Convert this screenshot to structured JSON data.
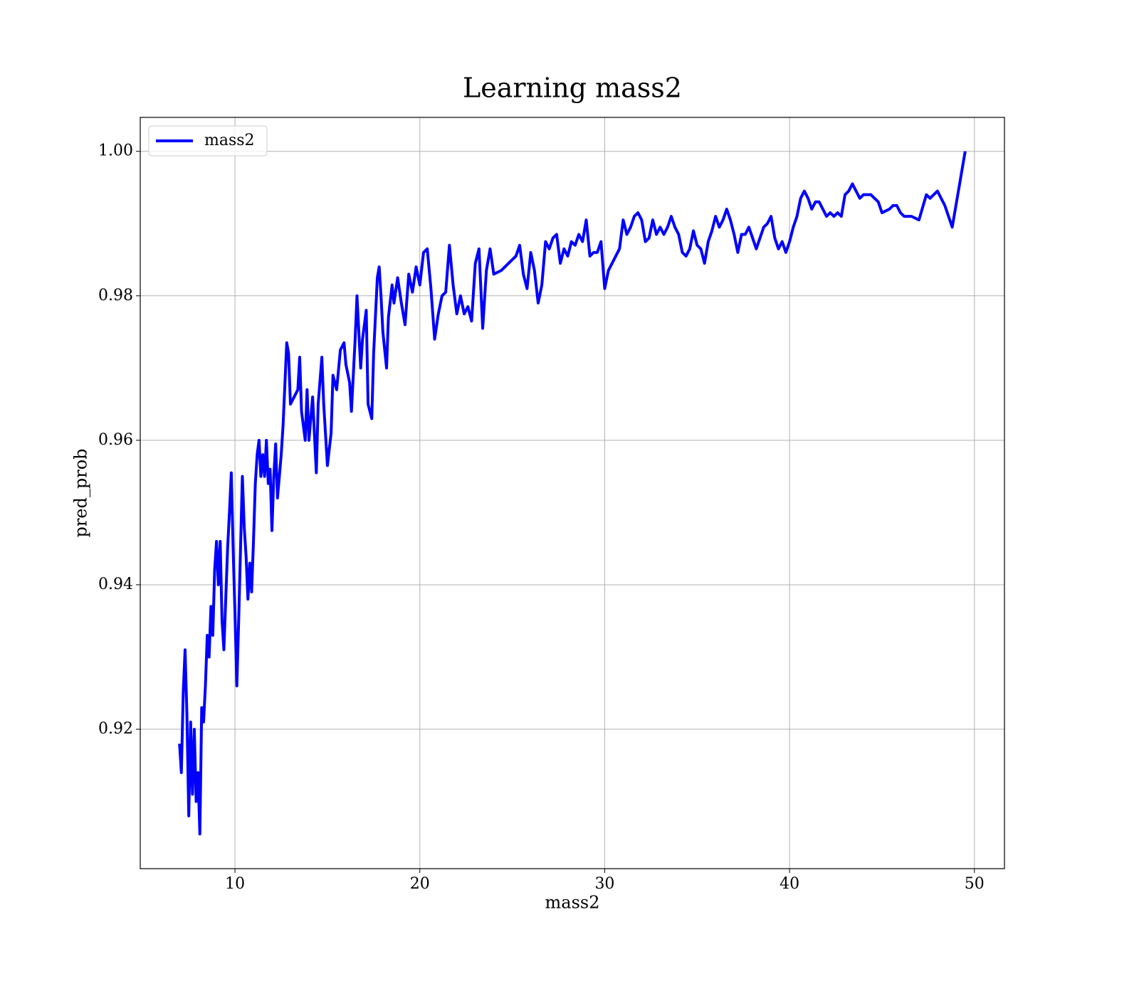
{
  "chart_data": {
    "type": "line",
    "title": "Learning mass2",
    "xlabel": "mass2",
    "ylabel": "pred_prob",
    "x": [
      7.0,
      7.1,
      7.2,
      7.3,
      7.4,
      7.5,
      7.6,
      7.7,
      7.8,
      7.9,
      8.0,
      8.1,
      8.2,
      8.3,
      8.4,
      8.5,
      8.6,
      8.7,
      8.8,
      8.9,
      9.0,
      9.1,
      9.2,
      9.3,
      9.4,
      9.5,
      9.6,
      9.7,
      9.8,
      9.9,
      10.0,
      10.1,
      10.2,
      10.3,
      10.4,
      10.5,
      10.6,
      10.7,
      10.8,
      10.9,
      11.0,
      11.1,
      11.2,
      11.3,
      11.4,
      11.5,
      11.6,
      11.7,
      11.8,
      11.9,
      12.0,
      12.1,
      12.2,
      12.3,
      12.4,
      12.5,
      12.6,
      12.8,
      12.9,
      13.0,
      13.2,
      13.4,
      13.5,
      13.6,
      13.8,
      13.9,
      14.0,
      14.2,
      14.4,
      14.5,
      14.7,
      14.8,
      15.0,
      15.2,
      15.3,
      15.5,
      15.7,
      15.9,
      16.0,
      16.2,
      16.3,
      16.5,
      16.6,
      16.7,
      16.8,
      16.9,
      17.1,
      17.2,
      17.4,
      17.5,
      17.7,
      17.8,
      17.9,
      18.0,
      18.2,
      18.3,
      18.5,
      18.6,
      18.8,
      19.0,
      19.2,
      19.4,
      19.6,
      19.8,
      20.0,
      20.2,
      20.4,
      20.6,
      20.8,
      21.0,
      21.2,
      21.4,
      21.6,
      21.8,
      22.0,
      22.2,
      22.4,
      22.6,
      22.8,
      23.0,
      23.2,
      23.4,
      23.6,
      23.8,
      24.0,
      24.4,
      24.8,
      25.2,
      25.4,
      25.6,
      25.8,
      26.0,
      26.2,
      26.4,
      26.6,
      26.8,
      27.0,
      27.2,
      27.4,
      27.6,
      27.8,
      28.0,
      28.2,
      28.4,
      28.6,
      28.8,
      29.0,
      29.2,
      29.4,
      29.6,
      29.8,
      30.0,
      30.2,
      30.4,
      30.6,
      30.8,
      31.0,
      31.2,
      31.4,
      31.6,
      31.8,
      32.0,
      32.2,
      32.4,
      32.6,
      32.8,
      33.0,
      33.2,
      33.4,
      33.6,
      33.8,
      34.0,
      34.2,
      34.4,
      34.6,
      34.8,
      35.0,
      35.2,
      35.4,
      35.6,
      35.8,
      36.0,
      36.2,
      36.4,
      36.6,
      36.8,
      37.0,
      37.2,
      37.4,
      37.6,
      37.8,
      38.0,
      38.2,
      38.4,
      38.6,
      38.8,
      39.0,
      39.2,
      39.4,
      39.6,
      39.8,
      40.0,
      40.2,
      40.4,
      40.6,
      40.8,
      41.0,
      41.2,
      41.4,
      41.6,
      41.8,
      42.0,
      42.2,
      42.4,
      42.6,
      42.8,
      43.0,
      43.2,
      43.4,
      43.6,
      43.8,
      44.0,
      44.4,
      44.8,
      45.0,
      45.4,
      45.6,
      45.8,
      46.0,
      46.2,
      46.6,
      47.0,
      47.4,
      47.6,
      48.0,
      48.4,
      48.8,
      49.5
    ],
    "series": [
      {
        "name": "mass2",
        "color": "#0000ff",
        "values": [
          0.918,
          0.914,
          0.925,
          0.931,
          0.922,
          0.908,
          0.921,
          0.911,
          0.92,
          0.91,
          0.914,
          0.9055,
          0.923,
          0.921,
          0.926,
          0.933,
          0.93,
          0.937,
          0.933,
          0.942,
          0.946,
          0.94,
          0.946,
          0.935,
          0.931,
          0.938,
          0.945,
          0.95,
          0.9555,
          0.945,
          0.936,
          0.926,
          0.935,
          0.945,
          0.955,
          0.948,
          0.944,
          0.938,
          0.943,
          0.939,
          0.946,
          0.954,
          0.958,
          0.96,
          0.955,
          0.958,
          0.955,
          0.96,
          0.954,
          0.956,
          0.9475,
          0.955,
          0.9595,
          0.952,
          0.955,
          0.958,
          0.962,
          0.9735,
          0.972,
          0.965,
          0.966,
          0.967,
          0.9715,
          0.964,
          0.96,
          0.967,
          0.96,
          0.966,
          0.9555,
          0.965,
          0.9715,
          0.965,
          0.9565,
          0.961,
          0.969,
          0.967,
          0.9725,
          0.9735,
          0.9705,
          0.968,
          0.964,
          0.974,
          0.98,
          0.975,
          0.97,
          0.974,
          0.978,
          0.965,
          0.963,
          0.972,
          0.9825,
          0.984,
          0.98,
          0.975,
          0.97,
          0.977,
          0.9815,
          0.979,
          0.9825,
          0.979,
          0.976,
          0.983,
          0.9805,
          0.984,
          0.9815,
          0.986,
          0.9865,
          0.981,
          0.974,
          0.9775,
          0.98,
          0.9805,
          0.987,
          0.9815,
          0.9775,
          0.98,
          0.9775,
          0.9785,
          0.9765,
          0.9845,
          0.9865,
          0.9755,
          0.9835,
          0.9865,
          0.983,
          0.9835,
          0.9845,
          0.9855,
          0.987,
          0.983,
          0.981,
          0.986,
          0.9835,
          0.979,
          0.9815,
          0.9875,
          0.9865,
          0.988,
          0.9885,
          0.9845,
          0.9865,
          0.9855,
          0.9875,
          0.987,
          0.9885,
          0.9875,
          0.9905,
          0.9855,
          0.986,
          0.986,
          0.9875,
          0.981,
          0.9835,
          0.9845,
          0.9855,
          0.9865,
          0.9905,
          0.9885,
          0.9895,
          0.991,
          0.9915,
          0.9905,
          0.9875,
          0.988,
          0.9905,
          0.9885,
          0.9895,
          0.9885,
          0.9895,
          0.991,
          0.9895,
          0.9885,
          0.986,
          0.9855,
          0.9865,
          0.989,
          0.987,
          0.9865,
          0.9845,
          0.9875,
          0.989,
          0.991,
          0.9895,
          0.9905,
          0.992,
          0.9905,
          0.9885,
          0.986,
          0.9885,
          0.9885,
          0.9895,
          0.988,
          0.9865,
          0.988,
          0.9895,
          0.99,
          0.991,
          0.988,
          0.9865,
          0.9875,
          0.986,
          0.9875,
          0.9895,
          0.991,
          0.9935,
          0.9945,
          0.9935,
          0.992,
          0.993,
          0.993,
          0.992,
          0.991,
          0.9915,
          0.991,
          0.9915,
          0.991,
          0.994,
          0.9945,
          0.9955,
          0.9945,
          0.9935,
          0.994,
          0.994,
          0.993,
          0.9915,
          0.992,
          0.9925,
          0.9925,
          0.9915,
          0.991,
          0.991,
          0.9905,
          0.994,
          0.9935,
          0.9945,
          0.9925,
          0.9895,
          1.0
        ]
      }
    ],
    "xlim": [
      4.875,
      51.625
    ],
    "ylim": [
      0.9007,
      1.0047
    ],
    "xticks": [
      10,
      20,
      30,
      40,
      50
    ],
    "yticks": [
      0.92,
      0.94,
      0.96,
      0.98,
      {
        "value": 1.0,
        "label": "1.00"
      }
    ],
    "grid": true,
    "legend": "upper left"
  }
}
